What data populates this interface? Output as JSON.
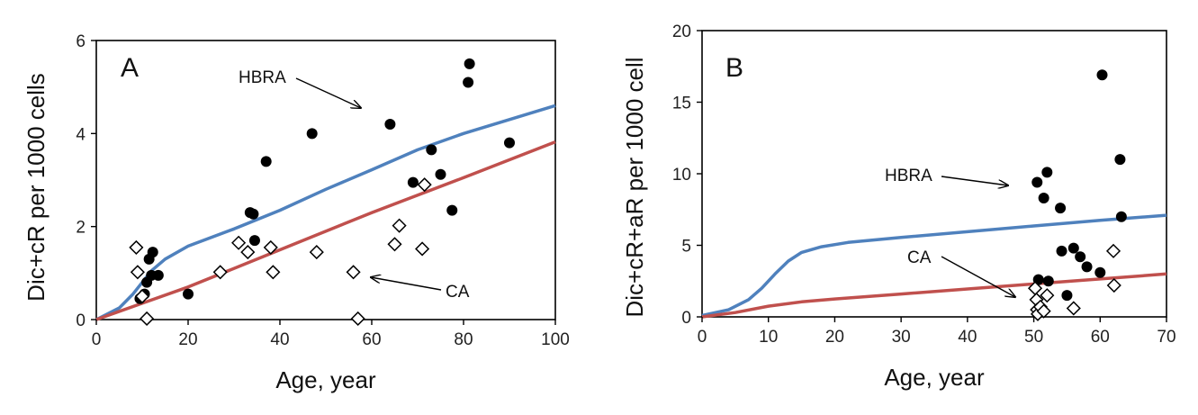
{
  "chart_data": [
    {
      "type": "scatter",
      "panel_label": "A",
      "xlabel": "Age, year",
      "ylabel": "Dic+cR per 1000 cells",
      "xlim": [
        0,
        100
      ],
      "ylim": [
        0,
        6
      ],
      "xticks": [
        0,
        20,
        40,
        60,
        80,
        100
      ],
      "yticks": [
        0,
        2,
        4,
        6
      ],
      "grid": false,
      "legend": "none",
      "annotations": [
        {
          "text": "HBRA",
          "target": "HBRA"
        },
        {
          "text": "CA",
          "target": "CA"
        }
      ],
      "series": [
        {
          "key": "HBRA",
          "marker": "filled-circle",
          "color": "#000000",
          "points": [
            [
              9.5,
              0.45
            ],
            [
              10.5,
              0.55
            ],
            [
              11,
              0.8
            ],
            [
              11.5,
              1.3
            ],
            [
              12,
              0.95
            ],
            [
              12.3,
              1.45
            ],
            [
              13.5,
              0.95
            ],
            [
              20,
              0.55
            ],
            [
              33.5,
              2.3
            ],
            [
              34.2,
              2.27
            ],
            [
              34.5,
              1.7
            ],
            [
              37,
              3.4
            ],
            [
              47,
              4.0
            ],
            [
              64,
              4.2
            ],
            [
              69,
              2.95
            ],
            [
              73,
              3.65
            ],
            [
              75,
              3.12
            ],
            [
              77.5,
              2.35
            ],
            [
              81,
              5.1
            ],
            [
              81.3,
              5.5
            ],
            [
              90,
              3.8
            ]
          ]
        },
        {
          "key": "CA",
          "marker": "open-diamond",
          "color": "#000000",
          "points": [
            [
              8.7,
              1.55
            ],
            [
              9,
              1.02
            ],
            [
              10,
              0.5
            ],
            [
              11,
              0.02
            ],
            [
              27,
              1.02
            ],
            [
              31,
              1.65
            ],
            [
              33,
              1.45
            ],
            [
              38,
              1.55
            ],
            [
              38.5,
              1.02
            ],
            [
              48,
              1.45
            ],
            [
              56,
              1.02
            ],
            [
              57,
              0.02
            ],
            [
              65,
              1.62
            ],
            [
              66,
              2.02
            ],
            [
              71,
              1.52
            ],
            [
              71.5,
              2.9
            ]
          ]
        },
        {
          "key": "HBRA-curve",
          "kind": "line",
          "color": "#4f81bd",
          "points": [
            [
              0,
              0
            ],
            [
              5,
              0.25
            ],
            [
              8,
              0.55
            ],
            [
              10,
              0.8
            ],
            [
              12,
              1.05
            ],
            [
              15,
              1.3
            ],
            [
              20,
              1.58
            ],
            [
              30,
              1.95
            ],
            [
              40,
              2.35
            ],
            [
              50,
              2.8
            ],
            [
              60,
              3.22
            ],
            [
              70,
              3.65
            ],
            [
              80,
              4.0
            ],
            [
              90,
              4.3
            ],
            [
              100,
              4.6
            ]
          ]
        },
        {
          "key": "CA-curve",
          "kind": "line",
          "color": "#c0504d",
          "points": [
            [
              0,
              0
            ],
            [
              10,
              0.35
            ],
            [
              20,
              0.7
            ],
            [
              40,
              1.5
            ],
            [
              60,
              2.3
            ],
            [
              80,
              3.05
            ],
            [
              100,
              3.82
            ]
          ]
        }
      ]
    },
    {
      "type": "scatter",
      "panel_label": "B",
      "xlabel": "Age, year",
      "ylabel": "Dic+cR+aR per 1000 cell",
      "xlim": [
        0,
        70
      ],
      "ylim": [
        0,
        20
      ],
      "xticks": [
        0,
        10,
        20,
        30,
        40,
        50,
        60,
        70
      ],
      "yticks": [
        0,
        5,
        10,
        15,
        20
      ],
      "grid": false,
      "legend": "none",
      "annotations": [
        {
          "text": "HBRA",
          "target": "HBRA"
        },
        {
          "text": "CA",
          "target": "CA"
        }
      ],
      "series": [
        {
          "key": "HBRA",
          "marker": "filled-circle",
          "color": "#000000",
          "points": [
            [
              50.5,
              9.4
            ],
            [
              50.7,
              2.6
            ],
            [
              51.5,
              8.3
            ],
            [
              52,
              10.1
            ],
            [
              52.2,
              2.5
            ],
            [
              54,
              7.6
            ],
            [
              54.2,
              4.6
            ],
            [
              55,
              1.5
            ],
            [
              56,
              4.8
            ],
            [
              57,
              4.2
            ],
            [
              58,
              3.5
            ],
            [
              60,
              3.1
            ],
            [
              60.3,
              16.9
            ],
            [
              63,
              11.0
            ],
            [
              63.2,
              7.0
            ]
          ]
        },
        {
          "key": "CA",
          "marker": "open-diamond",
          "color": "#000000",
          "points": [
            [
              50.2,
              2.0
            ],
            [
              50.4,
              1.2
            ],
            [
              50.5,
              0.5
            ],
            [
              50.6,
              0.2
            ],
            [
              51,
              0.7
            ],
            [
              51.5,
              0.4
            ],
            [
              52,
              1.5
            ],
            [
              56,
              0.6
            ],
            [
              62,
              4.6
            ],
            [
              62.1,
              2.2
            ]
          ]
        },
        {
          "key": "HBRA-curve",
          "kind": "line",
          "color": "#4f81bd",
          "points": [
            [
              0,
              0.1
            ],
            [
              4,
              0.5
            ],
            [
              7,
              1.2
            ],
            [
              9,
              2.0
            ],
            [
              11,
              3.0
            ],
            [
              13,
              3.9
            ],
            [
              15,
              4.5
            ],
            [
              18,
              4.9
            ],
            [
              22,
              5.2
            ],
            [
              30,
              5.55
            ],
            [
              40,
              5.95
            ],
            [
              50,
              6.35
            ],
            [
              60,
              6.75
            ],
            [
              70,
              7.1
            ]
          ]
        },
        {
          "key": "CA-curve",
          "kind": "line",
          "color": "#c0504d",
          "points": [
            [
              0,
              0
            ],
            [
              5,
              0.3
            ],
            [
              10,
              0.75
            ],
            [
              15,
              1.05
            ],
            [
              20,
              1.25
            ],
            [
              30,
              1.6
            ],
            [
              40,
              1.95
            ],
            [
              50,
              2.3
            ],
            [
              60,
              2.65
            ],
            [
              70,
              3.0
            ]
          ]
        }
      ]
    }
  ]
}
